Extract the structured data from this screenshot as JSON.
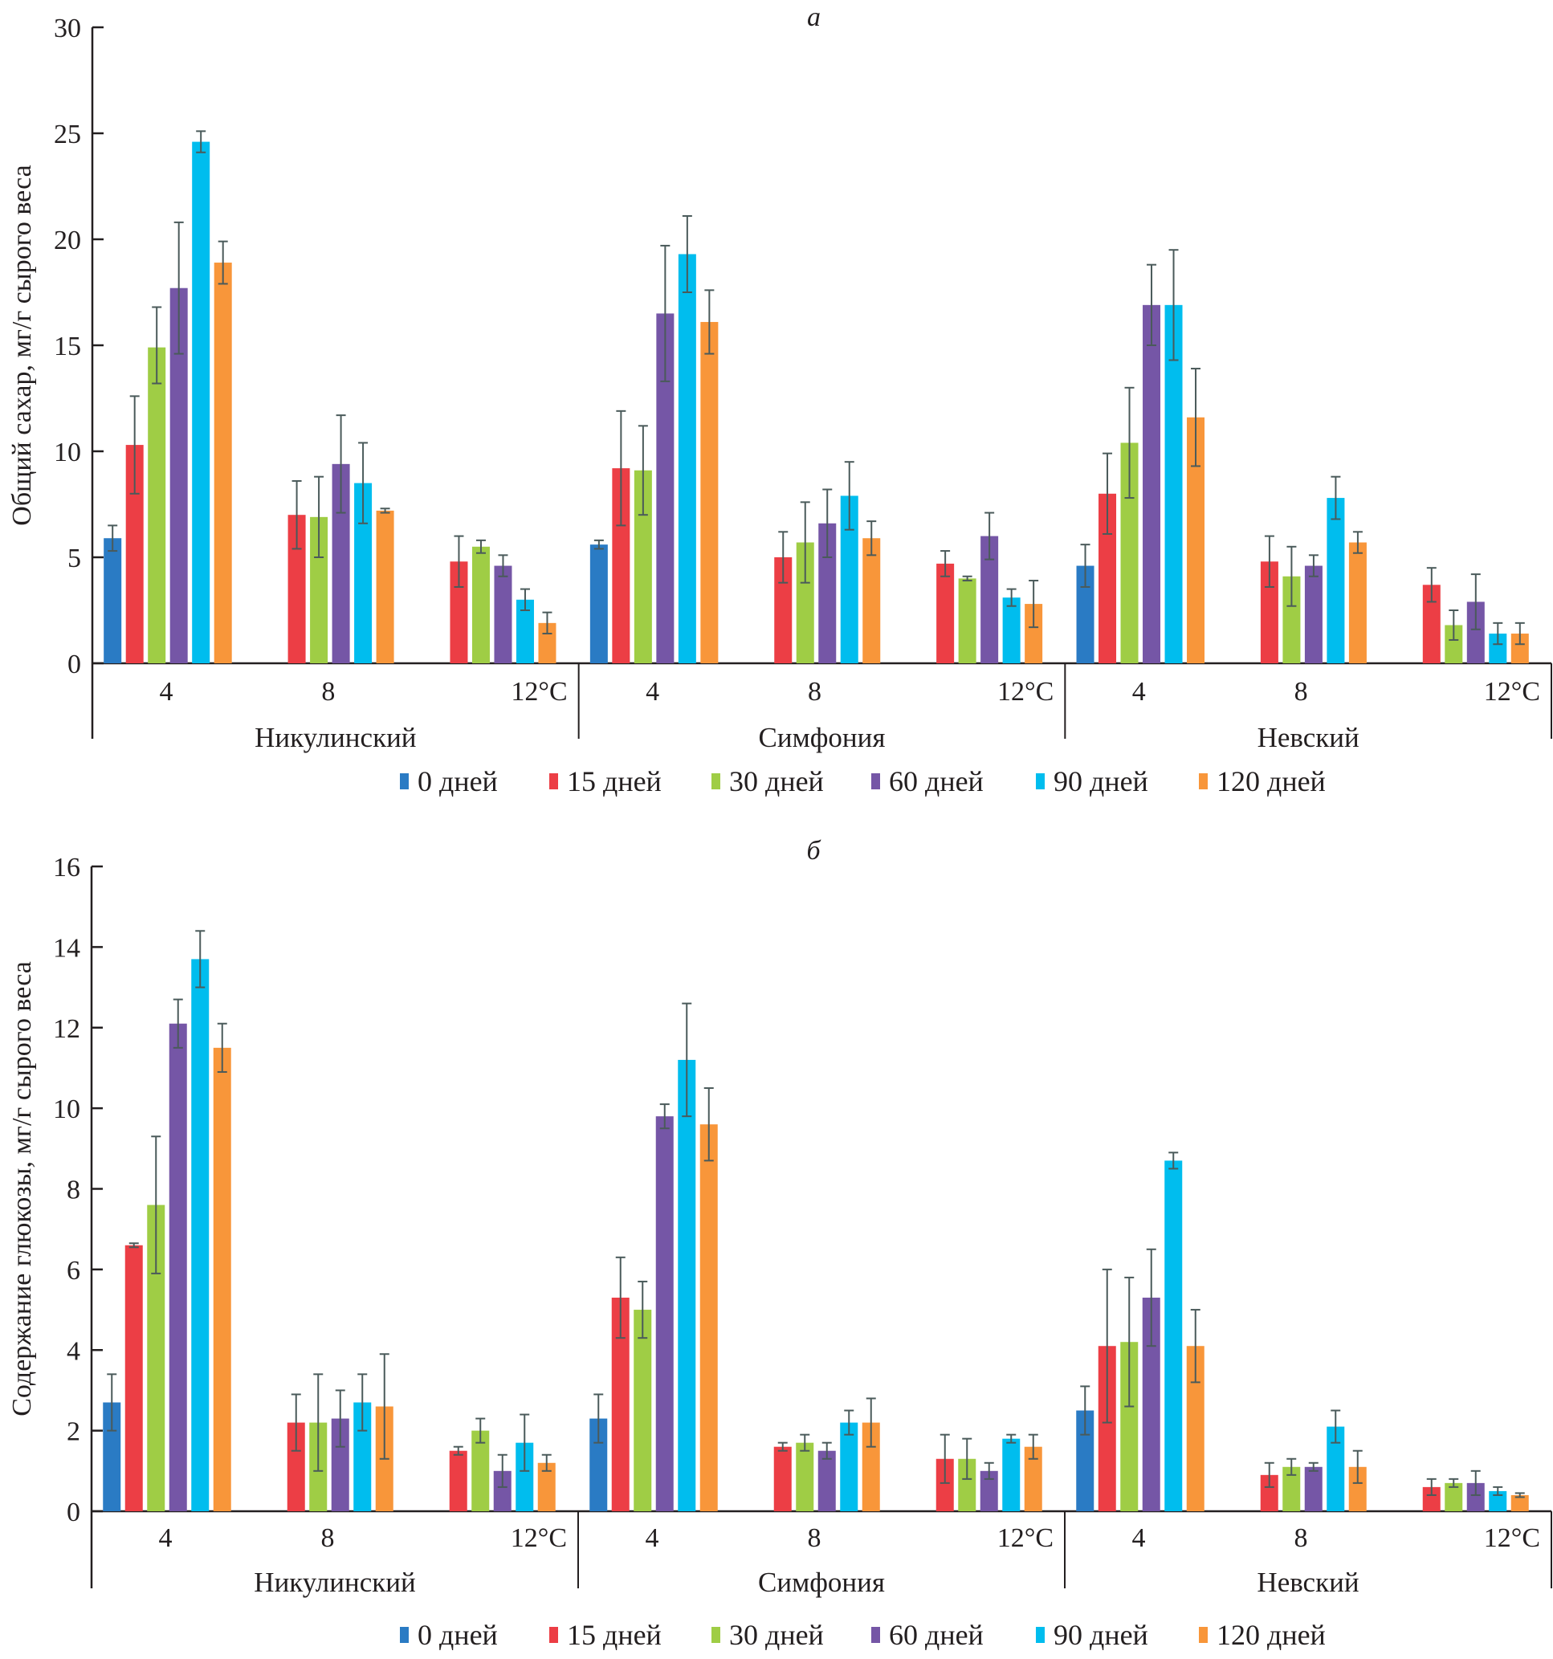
{
  "chart_data": [
    {
      "type": "bar",
      "panel": "а",
      "ylabel": "Общий сахар, мг/г сырого веса",
      "ylim": [
        0,
        30
      ],
      "yticks": [
        0,
        5,
        10,
        15,
        20,
        25,
        30
      ],
      "groups": [
        "Никулинский",
        "Симфония",
        "Невский"
      ],
      "temperatures": [
        "4",
        "8",
        "12°C"
      ],
      "series_names": [
        "0 дней",
        "15 дней",
        "30 дней",
        "60 дней",
        "90 дней",
        "120 дней"
      ],
      "clusters": [
        {
          "group": "Никулинский",
          "temp": "4",
          "values": [
            5.9,
            10.3,
            14.9,
            17.7,
            24.6,
            18.9
          ],
          "err_top": [
            6.5,
            12.6,
            16.8,
            20.8,
            25.1,
            19.9
          ],
          "err_bottom": [
            5.3,
            8.0,
            13.2,
            14.6,
            24.1,
            17.9
          ]
        },
        {
          "group": "Никулинский",
          "temp": "8",
          "values": [
            null,
            7.0,
            6.9,
            9.4,
            8.5,
            7.2
          ],
          "err_top": [
            null,
            8.6,
            8.8,
            11.7,
            10.4,
            7.3
          ],
          "err_bottom": [
            null,
            5.4,
            5.0,
            7.1,
            6.6,
            7.1
          ]
        },
        {
          "group": "Никулинский",
          "temp": "12°C",
          "values": [
            null,
            4.8,
            5.5,
            4.6,
            3.0,
            1.9
          ],
          "err_top": [
            null,
            6.0,
            5.8,
            5.1,
            3.5,
            2.4
          ],
          "err_bottom": [
            null,
            3.6,
            5.2,
            4.1,
            2.5,
            1.4
          ]
        },
        {
          "group": "Симфония",
          "temp": "4",
          "values": [
            5.6,
            9.2,
            9.1,
            16.5,
            19.3,
            16.1
          ],
          "err_top": [
            5.8,
            11.9,
            11.2,
            19.7,
            21.1,
            17.6
          ],
          "err_bottom": [
            5.4,
            6.5,
            7.0,
            13.3,
            17.5,
            14.6
          ]
        },
        {
          "group": "Симфония",
          "temp": "8",
          "values": [
            null,
            5.0,
            5.7,
            6.6,
            7.9,
            5.9
          ],
          "err_top": [
            null,
            6.2,
            7.6,
            8.2,
            9.5,
            6.7
          ],
          "err_bottom": [
            null,
            3.8,
            3.8,
            5.0,
            6.3,
            5.1
          ]
        },
        {
          "group": "Симфония",
          "temp": "12°C",
          "values": [
            null,
            4.7,
            4.0,
            6.0,
            3.1,
            2.8
          ],
          "err_top": [
            null,
            5.3,
            4.1,
            7.1,
            3.5,
            3.9
          ],
          "err_bottom": [
            null,
            4.1,
            3.9,
            4.9,
            2.7,
            1.7
          ]
        },
        {
          "group": "Невский",
          "temp": "4",
          "values": [
            4.6,
            8.0,
            10.4,
            16.9,
            16.9,
            11.6
          ],
          "err_top": [
            5.6,
            9.9,
            13.0,
            18.8,
            19.5,
            13.9
          ],
          "err_bottom": [
            3.6,
            6.1,
            7.8,
            15.0,
            14.3,
            9.3
          ]
        },
        {
          "group": "Невский",
          "temp": "8",
          "values": [
            null,
            4.8,
            4.1,
            4.6,
            7.8,
            5.7
          ],
          "err_top": [
            null,
            6.0,
            5.5,
            5.1,
            8.8,
            6.2
          ],
          "err_bottom": [
            null,
            3.6,
            2.7,
            4.1,
            6.8,
            5.2
          ]
        },
        {
          "group": "Невский",
          "temp": "12°C",
          "values": [
            null,
            3.7,
            1.8,
            2.9,
            1.4,
            1.4
          ],
          "err_top": [
            null,
            4.5,
            2.5,
            4.2,
            1.9,
            1.9
          ],
          "err_bottom": [
            null,
            2.9,
            1.1,
            1.6,
            0.9,
            0.9
          ]
        }
      ]
    },
    {
      "type": "bar",
      "panel": "б",
      "ylabel": "Содержание глюкозы, мг/г сырого веса",
      "ylim": [
        0,
        16
      ],
      "yticks": [
        0,
        2,
        4,
        6,
        8,
        10,
        12,
        14,
        16
      ],
      "groups": [
        "Никулинский",
        "Симфония",
        "Невский"
      ],
      "temperatures": [
        "4",
        "8",
        "12°C"
      ],
      "series_names": [
        "0 дней",
        "15 дней",
        "30 дней",
        "60 дней",
        "90 дней",
        "120 дней"
      ],
      "clusters": [
        {
          "group": "Никулинский",
          "temp": "4",
          "values": [
            2.7,
            6.6,
            7.6,
            12.1,
            13.7,
            11.5
          ],
          "err_top": [
            3.4,
            6.65,
            9.3,
            12.7,
            14.4,
            12.1
          ],
          "err_bottom": [
            2.0,
            6.55,
            5.9,
            11.5,
            13.0,
            10.9
          ]
        },
        {
          "group": "Никулинский",
          "temp": "8",
          "values": [
            null,
            2.2,
            2.2,
            2.3,
            2.7,
            2.6
          ],
          "err_top": [
            null,
            2.9,
            3.4,
            3.0,
            3.4,
            3.9
          ],
          "err_bottom": [
            null,
            1.5,
            1.0,
            1.6,
            2.0,
            1.3
          ]
        },
        {
          "group": "Никулинский",
          "temp": "12°C",
          "values": [
            null,
            1.5,
            2.0,
            1.0,
            1.7,
            1.2
          ],
          "err_top": [
            null,
            1.6,
            2.3,
            1.4,
            2.4,
            1.4
          ],
          "err_bottom": [
            null,
            1.4,
            1.7,
            0.6,
            1.0,
            1.0
          ]
        },
        {
          "group": "Симфония",
          "temp": "4",
          "values": [
            2.3,
            5.3,
            5.0,
            9.8,
            11.2,
            9.6
          ],
          "err_top": [
            2.9,
            6.3,
            5.7,
            10.1,
            12.6,
            10.5
          ],
          "err_bottom": [
            1.7,
            4.3,
            4.3,
            9.5,
            9.8,
            8.7
          ]
        },
        {
          "group": "Симфония",
          "temp": "8",
          "values": [
            null,
            1.6,
            1.7,
            1.5,
            2.2,
            2.2
          ],
          "err_top": [
            null,
            1.7,
            1.9,
            1.7,
            2.5,
            2.8
          ],
          "err_bottom": [
            null,
            1.5,
            1.5,
            1.3,
            1.9,
            1.6
          ]
        },
        {
          "group": "Симфония",
          "temp": "12°C",
          "values": [
            null,
            1.3,
            1.3,
            1.0,
            1.8,
            1.6
          ],
          "err_top": [
            null,
            1.9,
            1.8,
            1.2,
            1.9,
            1.9
          ],
          "err_bottom": [
            null,
            0.7,
            0.8,
            0.8,
            1.7,
            1.3
          ]
        },
        {
          "group": "Невский",
          "temp": "4",
          "values": [
            2.5,
            4.1,
            4.2,
            5.3,
            8.7,
            4.1
          ],
          "err_top": [
            3.1,
            6.0,
            5.8,
            6.5,
            8.9,
            5.0
          ],
          "err_bottom": [
            1.9,
            2.2,
            2.6,
            4.1,
            8.5,
            3.2
          ]
        },
        {
          "group": "Невский",
          "temp": "8",
          "values": [
            null,
            0.9,
            1.1,
            1.1,
            2.1,
            1.1
          ],
          "err_top": [
            null,
            1.2,
            1.3,
            1.2,
            2.5,
            1.5
          ],
          "err_bottom": [
            null,
            0.6,
            0.9,
            1.0,
            1.7,
            0.7
          ]
        },
        {
          "group": "Невский",
          "temp": "12°C",
          "values": [
            null,
            0.6,
            0.7,
            0.7,
            0.5,
            0.4
          ],
          "err_top": [
            null,
            0.8,
            0.8,
            1.0,
            0.6,
            0.45
          ],
          "err_bottom": [
            null,
            0.4,
            0.6,
            0.4,
            0.4,
            0.35
          ]
        }
      ]
    }
  ],
  "colors": {
    "series": [
      "#2a7bc4",
      "#ec3e45",
      "#9fcd45",
      "#7556a6",
      "#00bdee",
      "#f8963a"
    ],
    "axis": "#231f20",
    "error_bar": "#4a5a5a"
  },
  "legend": [
    {
      "label": "0 дней"
    },
    {
      "label": "15 дней"
    },
    {
      "label": "30 дней"
    },
    {
      "label": "60 дней"
    },
    {
      "label": "90 дней"
    },
    {
      "label": "120 дней"
    }
  ]
}
